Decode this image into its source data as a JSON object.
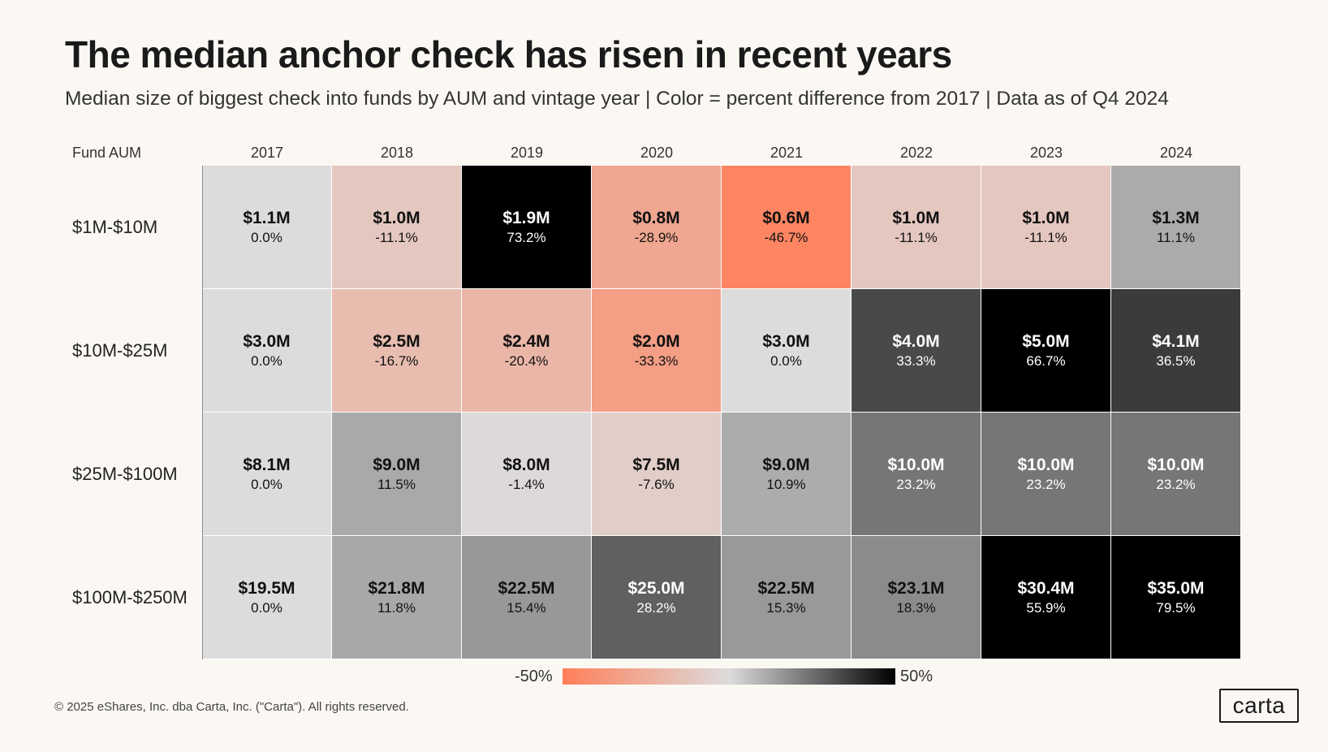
{
  "title": "The median anchor check has risen in recent years",
  "subtitle": "Median size of biggest check  into funds by AUM and vintage year | Color = percent difference from 2017 | Data as of Q4 2024",
  "footer": "© 2025 eShares, Inc. dba Carta, Inc. (\"Carta\"). All rights reserved.",
  "logo": "carta",
  "chart_data": {
    "type": "heatmap",
    "row_header": "Fund AUM",
    "columns": [
      "2017",
      "2018",
      "2019",
      "2020",
      "2021",
      "2022",
      "2023",
      "2024"
    ],
    "rows": [
      "$1M-$10M",
      "$10M-$25M",
      "$25M-$100M",
      "$100M-$250M"
    ],
    "values": [
      [
        "$1.1M",
        "$1.0M",
        "$1.9M",
        "$0.8M",
        "$0.6M",
        "$1.0M",
        "$1.0M",
        "$1.3M"
      ],
      [
        "$3.0M",
        "$2.5M",
        "$2.4M",
        "$2.0M",
        "$3.0M",
        "$4.0M",
        "$5.0M",
        "$4.1M"
      ],
      [
        "$8.1M",
        "$9.0M",
        "$8.0M",
        "$7.5M",
        "$9.0M",
        "$10.0M",
        "$10.0M",
        "$10.0M"
      ],
      [
        "$19.5M",
        "$21.8M",
        "$22.5M",
        "$25.0M",
        "$22.5M",
        "$23.1M",
        "$30.4M",
        "$35.0M"
      ]
    ],
    "pct_labels": [
      [
        "0.0%",
        "-11.1%",
        "73.2%",
        "-28.9%",
        "-46.7%",
        "-11.1%",
        "-11.1%",
        "11.1%"
      ],
      [
        "0.0%",
        "-16.7%",
        "-20.4%",
        "-33.3%",
        "0.0%",
        "33.3%",
        "66.7%",
        "36.5%"
      ],
      [
        "0.0%",
        "11.5%",
        "-1.4%",
        "-7.6%",
        "10.9%",
        "23.2%",
        "23.2%",
        "23.2%"
      ],
      [
        "0.0%",
        "11.8%",
        "15.4%",
        "28.2%",
        "15.3%",
        "18.3%",
        "55.9%",
        "79.5%"
      ]
    ],
    "pct_values": [
      [
        0.0,
        -11.1,
        73.2,
        -28.9,
        -46.7,
        -11.1,
        -11.1,
        11.1
      ],
      [
        0.0,
        -16.7,
        -20.4,
        -33.3,
        0.0,
        33.3,
        66.7,
        36.5
      ],
      [
        0.0,
        11.5,
        -1.4,
        -7.6,
        10.9,
        23.2,
        23.2,
        23.2
      ],
      [
        0.0,
        11.8,
        15.4,
        28.2,
        15.3,
        18.3,
        55.9,
        79.5
      ]
    ],
    "color_scale": {
      "min_label": "-50%",
      "max_label": "50%",
      "min": -50,
      "max": 50,
      "low_color": "#ff7f59",
      "mid_color": "#dcdcdc",
      "high_color": "#000000"
    }
  }
}
